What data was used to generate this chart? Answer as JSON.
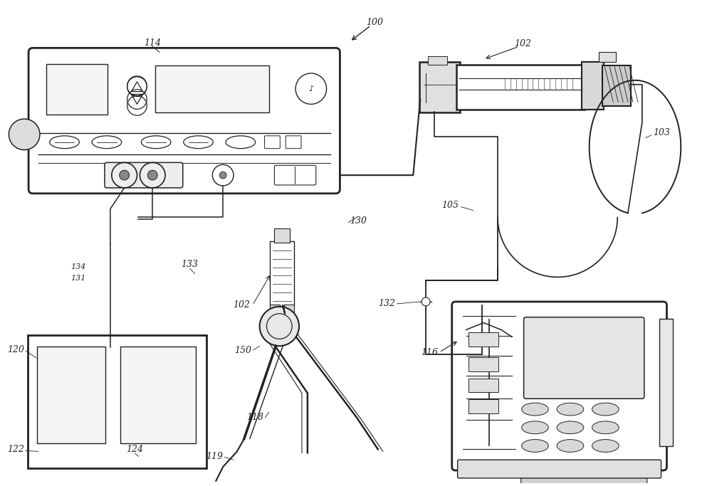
{
  "bg_color": "#ffffff",
  "line_color": "#222222",
  "fig_width": 10.0,
  "fig_height": 6.83
}
